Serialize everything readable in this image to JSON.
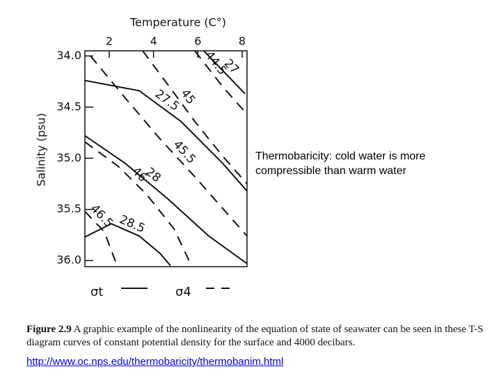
{
  "chart_data": {
    "type": "line",
    "x_label": "Temperature (C°)",
    "y_label": "Salinity (psu)",
    "xlim": [
      0.9,
      8.22
    ],
    "ylim": [
      36.06,
      33.95
    ],
    "xticks": [
      2,
      4,
      6,
      8
    ],
    "yticks": [
      {
        "value": 34,
        "label": "34.0"
      },
      {
        "value": 34.5,
        "label": "34.5"
      },
      {
        "value": 35,
        "label": "35.0"
      },
      {
        "value": 35.5,
        "label": "35.5"
      },
      {
        "value": 36,
        "label": "36.0"
      }
    ],
    "color": "#111111",
    "series": [
      {
        "name": "27",
        "style": "solid",
        "x": [
          6.27,
          8.13
        ],
        "values": [
          33.95,
          34.37
        ]
      },
      {
        "name": "27.5",
        "style": "solid",
        "x": [
          0.9,
          3.35,
          5.24,
          7.12,
          8.22
        ],
        "values": [
          34.24,
          34.34,
          34.64,
          35.05,
          35.32
        ]
      },
      {
        "name": "28",
        "style": "solid",
        "x": [
          0.9,
          2.72,
          4.61,
          6.49,
          8.22
        ],
        "values": [
          34.78,
          35.05,
          35.39,
          35.76,
          36.03
        ]
      },
      {
        "name": "28.5",
        "style": "solid",
        "x": [
          0.9,
          2.09,
          3.35,
          4.29,
          4.76
        ],
        "values": [
          35.77,
          35.64,
          35.76,
          35.93,
          36.05
        ]
      },
      {
        "name": "44.5",
        "style": "dashed",
        "x": [
          5.86,
          7.12,
          8.22
        ],
        "values": [
          33.95,
          34.3,
          34.57
        ]
      },
      {
        "name": "45",
        "style": "dashed",
        "x": [
          3.51,
          4.61,
          5.86,
          7.12,
          8.22
        ],
        "values": [
          33.95,
          34.27,
          34.64,
          34.98,
          35.25
        ]
      },
      {
        "name": "45.5",
        "style": "dashed",
        "x": [
          1.15,
          2.72,
          4.29,
          5.86,
          7.12,
          8.22
        ],
        "values": [
          34.0,
          34.41,
          34.81,
          35.18,
          35.49,
          35.76
        ]
      },
      {
        "name": "46",
        "style": "dashed",
        "x": [
          0.9,
          2.41,
          3.67,
          4.92,
          5.71
        ],
        "values": [
          34.84,
          35.08,
          35.35,
          35.69,
          36.05
        ]
      },
      {
        "name": "46.5",
        "style": "dashed",
        "x": [
          0.9,
          1.78,
          2.35
        ],
        "values": [
          35.52,
          35.72,
          36.05
        ]
      }
    ],
    "legend": [
      {
        "label": "σt",
        "style": "solid"
      },
      {
        "label": "σ4",
        "style": "dashed"
      }
    ],
    "annotation": "Thermobaricity: cold water is more compressible than warm water",
    "caption_label": "Figure 2.9",
    "caption": "A graphic example of the nonlinearity of the equation of state of seawater can be seen in these T-S diagram curves of constant potential density for the surface and 4000 decibars.",
    "link": "http://www.oc.nps.edu/thermobaricity/thermobanim.html"
  }
}
